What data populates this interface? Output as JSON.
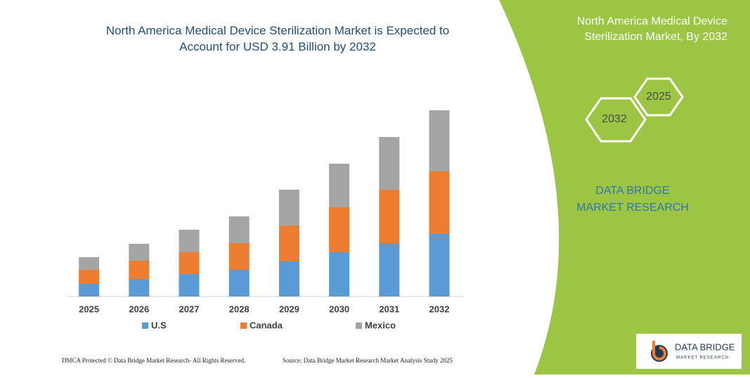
{
  "chart_data": {
    "type": "bar",
    "stacked": true,
    "title": "North America Medical Device Sterilization Market is Expected to Account for USD 3.91 Billion by 2032",
    "categories": [
      "2025",
      "2026",
      "2027",
      "2028",
      "2029",
      "2030",
      "2031",
      "2032"
    ],
    "series": [
      {
        "name": "U.S",
        "color": "#5b9bd5",
        "values": [
          18,
          25,
          32,
          38,
          50,
          63,
          76,
          89
        ]
      },
      {
        "name": "Canada",
        "color": "#ed7d31",
        "values": [
          20,
          26,
          31,
          38,
          51,
          64,
          76,
          89
        ]
      },
      {
        "name": "Mexico",
        "color": "#a5a5a5",
        "values": [
          18,
          24,
          32,
          38,
          51,
          62,
          75,
          87
        ]
      }
    ],
    "ylim": [
      0,
      270
    ]
  },
  "panel": {
    "title": "North America Medical Device Sterilization Market, By 2032",
    "hexagons": [
      "2032",
      "2025"
    ],
    "brand": "DATA BRIDGE MARKET RESEARCH"
  },
  "footer": {
    "left": "DMCA Protected © Data Bridge Market Research- All Rights Reserved.",
    "right": "Source: Data Bridge Market Research Market Analysis Study 2025"
  },
  "logo": {
    "name": "DATA BRIDGE",
    "tagline": "MARKET RESEARCH"
  }
}
